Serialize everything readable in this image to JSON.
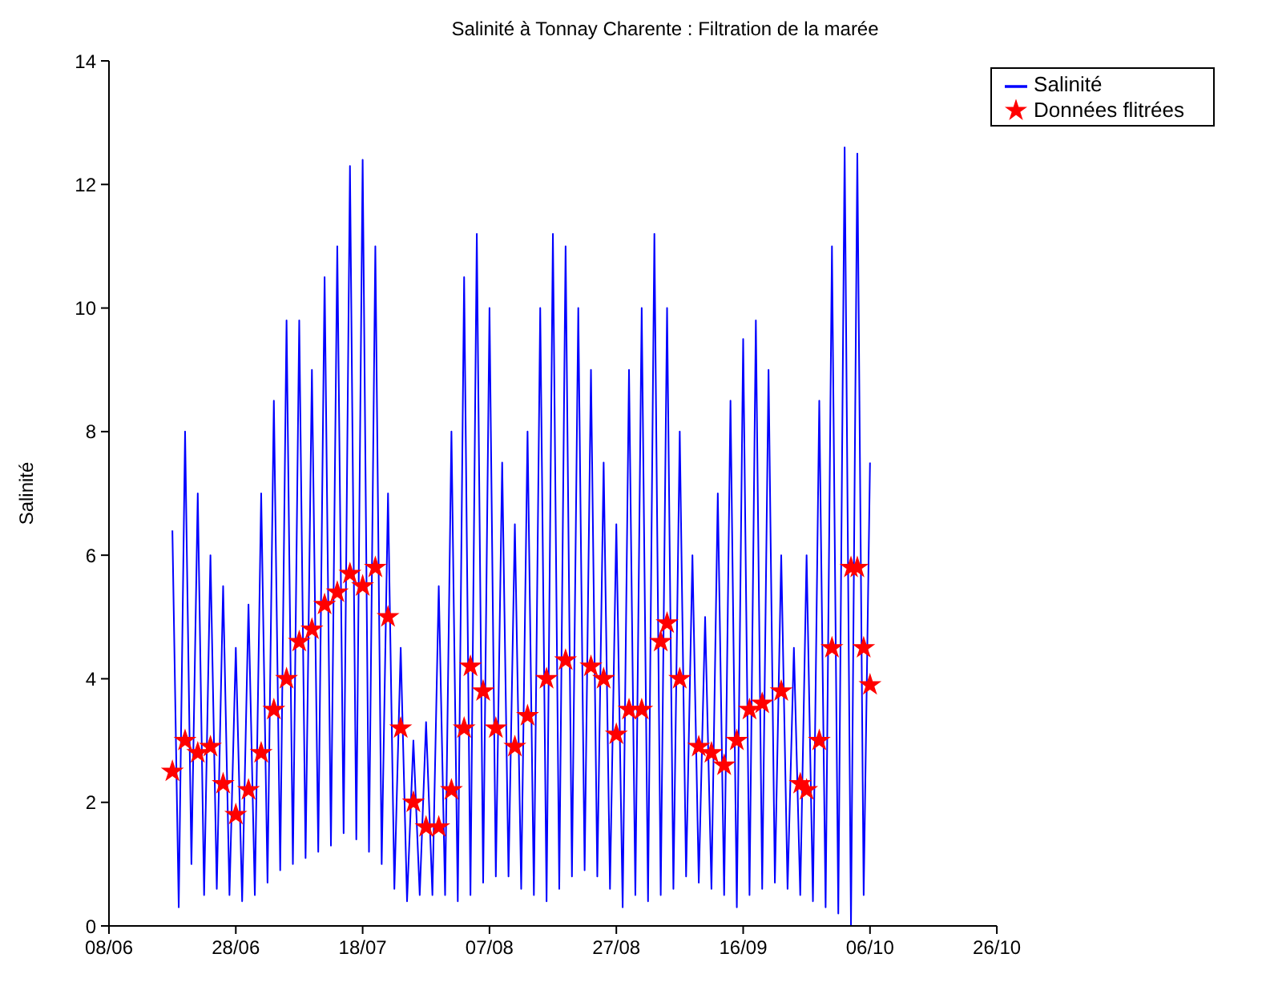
{
  "chart_data": {
    "type": "line",
    "title": "Salinité à Tonnay Charente : Filtration de la marée",
    "ylabel": "Salinité",
    "xlim": [
      "--06-08",
      "--10-26"
    ],
    "xticks": [
      {
        "value": "--06-08",
        "label": "08/06"
      },
      {
        "value": "--06-28",
        "label": "28/06"
      },
      {
        "value": "--07-18",
        "label": "18/07"
      },
      {
        "value": "--08-07",
        "label": "07/08"
      },
      {
        "value": "--08-27",
        "label": "27/08"
      },
      {
        "value": "--09-16",
        "label": "16/09"
      },
      {
        "value": "--10-06",
        "label": "06/10"
      },
      {
        "value": "--10-26",
        "label": "26/10"
      }
    ],
    "ylim": [
      0,
      14
    ],
    "yticks": [
      0,
      2,
      4,
      6,
      8,
      10,
      12,
      14
    ],
    "grid": false,
    "legend": "top right",
    "series": [
      {
        "name": "Salinité",
        "color": "#0000ff",
        "marker": "none",
        "line_style": "solid",
        "x": [
          "--06-18",
          "--06-19",
          "--06-20",
          "--06-21",
          "--06-22",
          "--06-23",
          "--06-24",
          "--06-25",
          "--06-26",
          "--06-27",
          "--06-28",
          "--06-29",
          "--06-30",
          "--07-01",
          "--07-02",
          "--07-03",
          "--07-04",
          "--07-05",
          "--07-06",
          "--07-07",
          "--07-08",
          "--07-09",
          "--07-10",
          "--07-11",
          "--07-12",
          "--07-13",
          "--07-14",
          "--07-15",
          "--07-16",
          "--07-17",
          "--07-18",
          "--07-19",
          "--07-20",
          "--07-21",
          "--07-22",
          "--07-23",
          "--07-24",
          "--07-25",
          "--07-26",
          "--07-27",
          "--07-28",
          "--07-29",
          "--07-30",
          "--07-31",
          "--08-01",
          "--08-02",
          "--08-03",
          "--08-04",
          "--08-05",
          "--08-06",
          "--08-07",
          "--08-08",
          "--08-09",
          "--08-10",
          "--08-11",
          "--08-12",
          "--08-13",
          "--08-14",
          "--08-15",
          "--08-16",
          "--08-17",
          "--08-18",
          "--08-19",
          "--08-20",
          "--08-21",
          "--08-22",
          "--08-23",
          "--08-24",
          "--08-25",
          "--08-26",
          "--08-27",
          "--08-28",
          "--08-29",
          "--08-30",
          "--08-31",
          "--09-01",
          "--09-02",
          "--09-03",
          "--09-04",
          "--09-05",
          "--09-06",
          "--09-07",
          "--09-08",
          "--09-09",
          "--09-10",
          "--09-11",
          "--09-12",
          "--09-13",
          "--09-14",
          "--09-15",
          "--09-16",
          "--09-17",
          "--09-18",
          "--09-19",
          "--09-20",
          "--09-21",
          "--09-22",
          "--09-23",
          "--09-24",
          "--09-25",
          "--09-26",
          "--09-27",
          "--09-28",
          "--09-29",
          "--09-30",
          "--10-01",
          "--10-02",
          "--10-03",
          "--10-04",
          "--10-05",
          "--10-06"
        ],
        "values": [
          6.4,
          0.3,
          8.0,
          1.0,
          7.0,
          0.5,
          6.0,
          0.6,
          5.5,
          0.5,
          4.5,
          0.4,
          5.2,
          0.5,
          7.0,
          0.7,
          8.5,
          0.9,
          9.8,
          1.0,
          9.8,
          1.1,
          9.0,
          1.2,
          10.5,
          1.3,
          11.0,
          1.5,
          12.3,
          1.4,
          12.4,
          1.2,
          11.0,
          1.0,
          7.0,
          0.6,
          4.5,
          0.4,
          3.0,
          0.5,
          3.3,
          0.5,
          5.5,
          0.5,
          8.0,
          0.4,
          10.5,
          0.5,
          11.2,
          0.7,
          10.0,
          0.8,
          7.5,
          0.8,
          6.5,
          0.6,
          8.0,
          0.5,
          10.0,
          0.4,
          11.2,
          0.6,
          11.0,
          0.8,
          10.0,
          0.9,
          9.0,
          0.8,
          7.5,
          0.6,
          6.5,
          0.3,
          9.0,
          0.5,
          10.0,
          0.4,
          11.2,
          0.5,
          10.0,
          0.6,
          8.0,
          0.8,
          6.0,
          0.7,
          5.0,
          0.6,
          7.0,
          0.5,
          8.5,
          0.3,
          9.5,
          0.5,
          9.8,
          0.6,
          9.0,
          0.7,
          6.0,
          0.6,
          4.5,
          0.5,
          6.0,
          0.4,
          8.5,
          0.3,
          11.0,
          0.2,
          12.6,
          0,
          12.5,
          0.5,
          7.5
        ]
      },
      {
        "name": "Données flitrées",
        "type": "scatter",
        "color": "#ff0000",
        "marker": "star",
        "x": [
          "--06-18",
          "--06-20",
          "--06-22",
          "--06-24",
          "--06-26",
          "--06-28",
          "--06-30",
          "--07-02",
          "--07-04",
          "--07-06",
          "--07-08",
          "--07-10",
          "--07-12",
          "--07-14",
          "--07-16",
          "--07-18",
          "--07-20",
          "--07-22",
          "--07-24",
          "--07-26",
          "--07-28",
          "--07-30",
          "--08-01",
          "--08-03",
          "--08-04",
          "--08-06",
          "--08-08",
          "--08-11",
          "--08-13",
          "--08-16",
          "--08-19",
          "--08-23",
          "--08-25",
          "--08-27",
          "--08-29",
          "--08-31",
          "--09-03",
          "--09-04",
          "--09-06",
          "--09-09",
          "--09-11",
          "--09-13",
          "--09-15",
          "--09-17",
          "--09-19",
          "--09-22",
          "--09-25",
          "--09-26",
          "--09-28",
          "--09-30",
          "--10-03",
          "--10-04",
          "--10-05",
          "--10-06"
        ],
        "values": [
          2.5,
          3.0,
          2.8,
          2.9,
          2.3,
          1.8,
          2.2,
          2.8,
          3.5,
          4.0,
          4.6,
          4.8,
          5.2,
          5.4,
          5.7,
          5.5,
          5.8,
          5.0,
          3.2,
          2.0,
          1.6,
          1.6,
          2.2,
          3.2,
          4.2,
          3.8,
          3.2,
          2.9,
          3.4,
          4.0,
          4.3,
          4.2,
          4.0,
          3.1,
          3.5,
          3.5,
          4.6,
          4.9,
          4.0,
          2.9,
          2.8,
          2.6,
          3.0,
          3.5,
          3.6,
          3.8,
          2.3,
          2.2,
          3.0,
          4.5,
          5.8,
          5.8,
          4.5,
          3.9
        ]
      }
    ]
  }
}
